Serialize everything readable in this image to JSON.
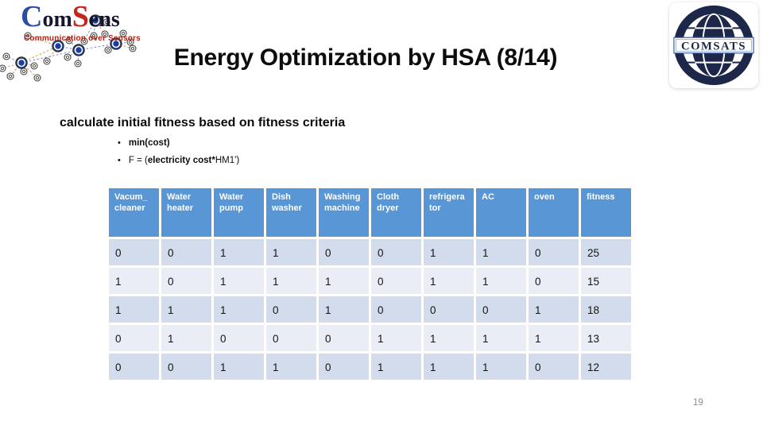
{
  "slide": {
    "title": "Energy Optimization by HSA (8/14)",
    "page_number": "19"
  },
  "logos": {
    "comsens": {
      "part_c": "C",
      "part_om": "om",
      "part_s": "S",
      "part_ens": "ens",
      "tagline": "Communication over Sensors"
    },
    "comsats": {
      "label": "COMSATS"
    }
  },
  "content": {
    "heading": "calculate initial fitness based on fitness criteria",
    "bullets": [
      {
        "text": "min(cost)"
      },
      {
        "prefix": "F = (",
        "bold": "electricity cost*",
        "suffix": "HM1')"
      }
    ]
  },
  "table": {
    "headers": [
      "Vacum_ cleaner",
      "Water heater",
      "Water pump",
      "Dish washer",
      "Washing machine",
      "Cloth dryer",
      "refrigera tor",
      "AC",
      "oven",
      "fitness"
    ],
    "rows": [
      [
        "0",
        "0",
        "1",
        "1",
        "0",
        "0",
        "1",
        "1",
        "0",
        "25"
      ],
      [
        "1",
        "0",
        "1",
        "1",
        "1",
        "0",
        "1",
        "1",
        "0",
        "15"
      ],
      [
        "1",
        "1",
        "1",
        "0",
        "1",
        "0",
        "0",
        "0",
        "1",
        "18"
      ],
      [
        "0",
        "1",
        "0",
        "0",
        "0",
        "1",
        "1",
        "1",
        "1",
        "13"
      ],
      [
        "0",
        "0",
        "1",
        "1",
        "0",
        "1",
        "1",
        "1",
        "0",
        "12"
      ]
    ]
  },
  "colors": {
    "header_blue": "#5996D5",
    "band_dark": "#D3DCEC",
    "band_light": "#EAEDF5",
    "comsens_blue": "#2B4EA2",
    "comsens_red": "#C4251C",
    "comsats_navy": "#1C2749",
    "page_number_gray": "#8c8c8c"
  }
}
